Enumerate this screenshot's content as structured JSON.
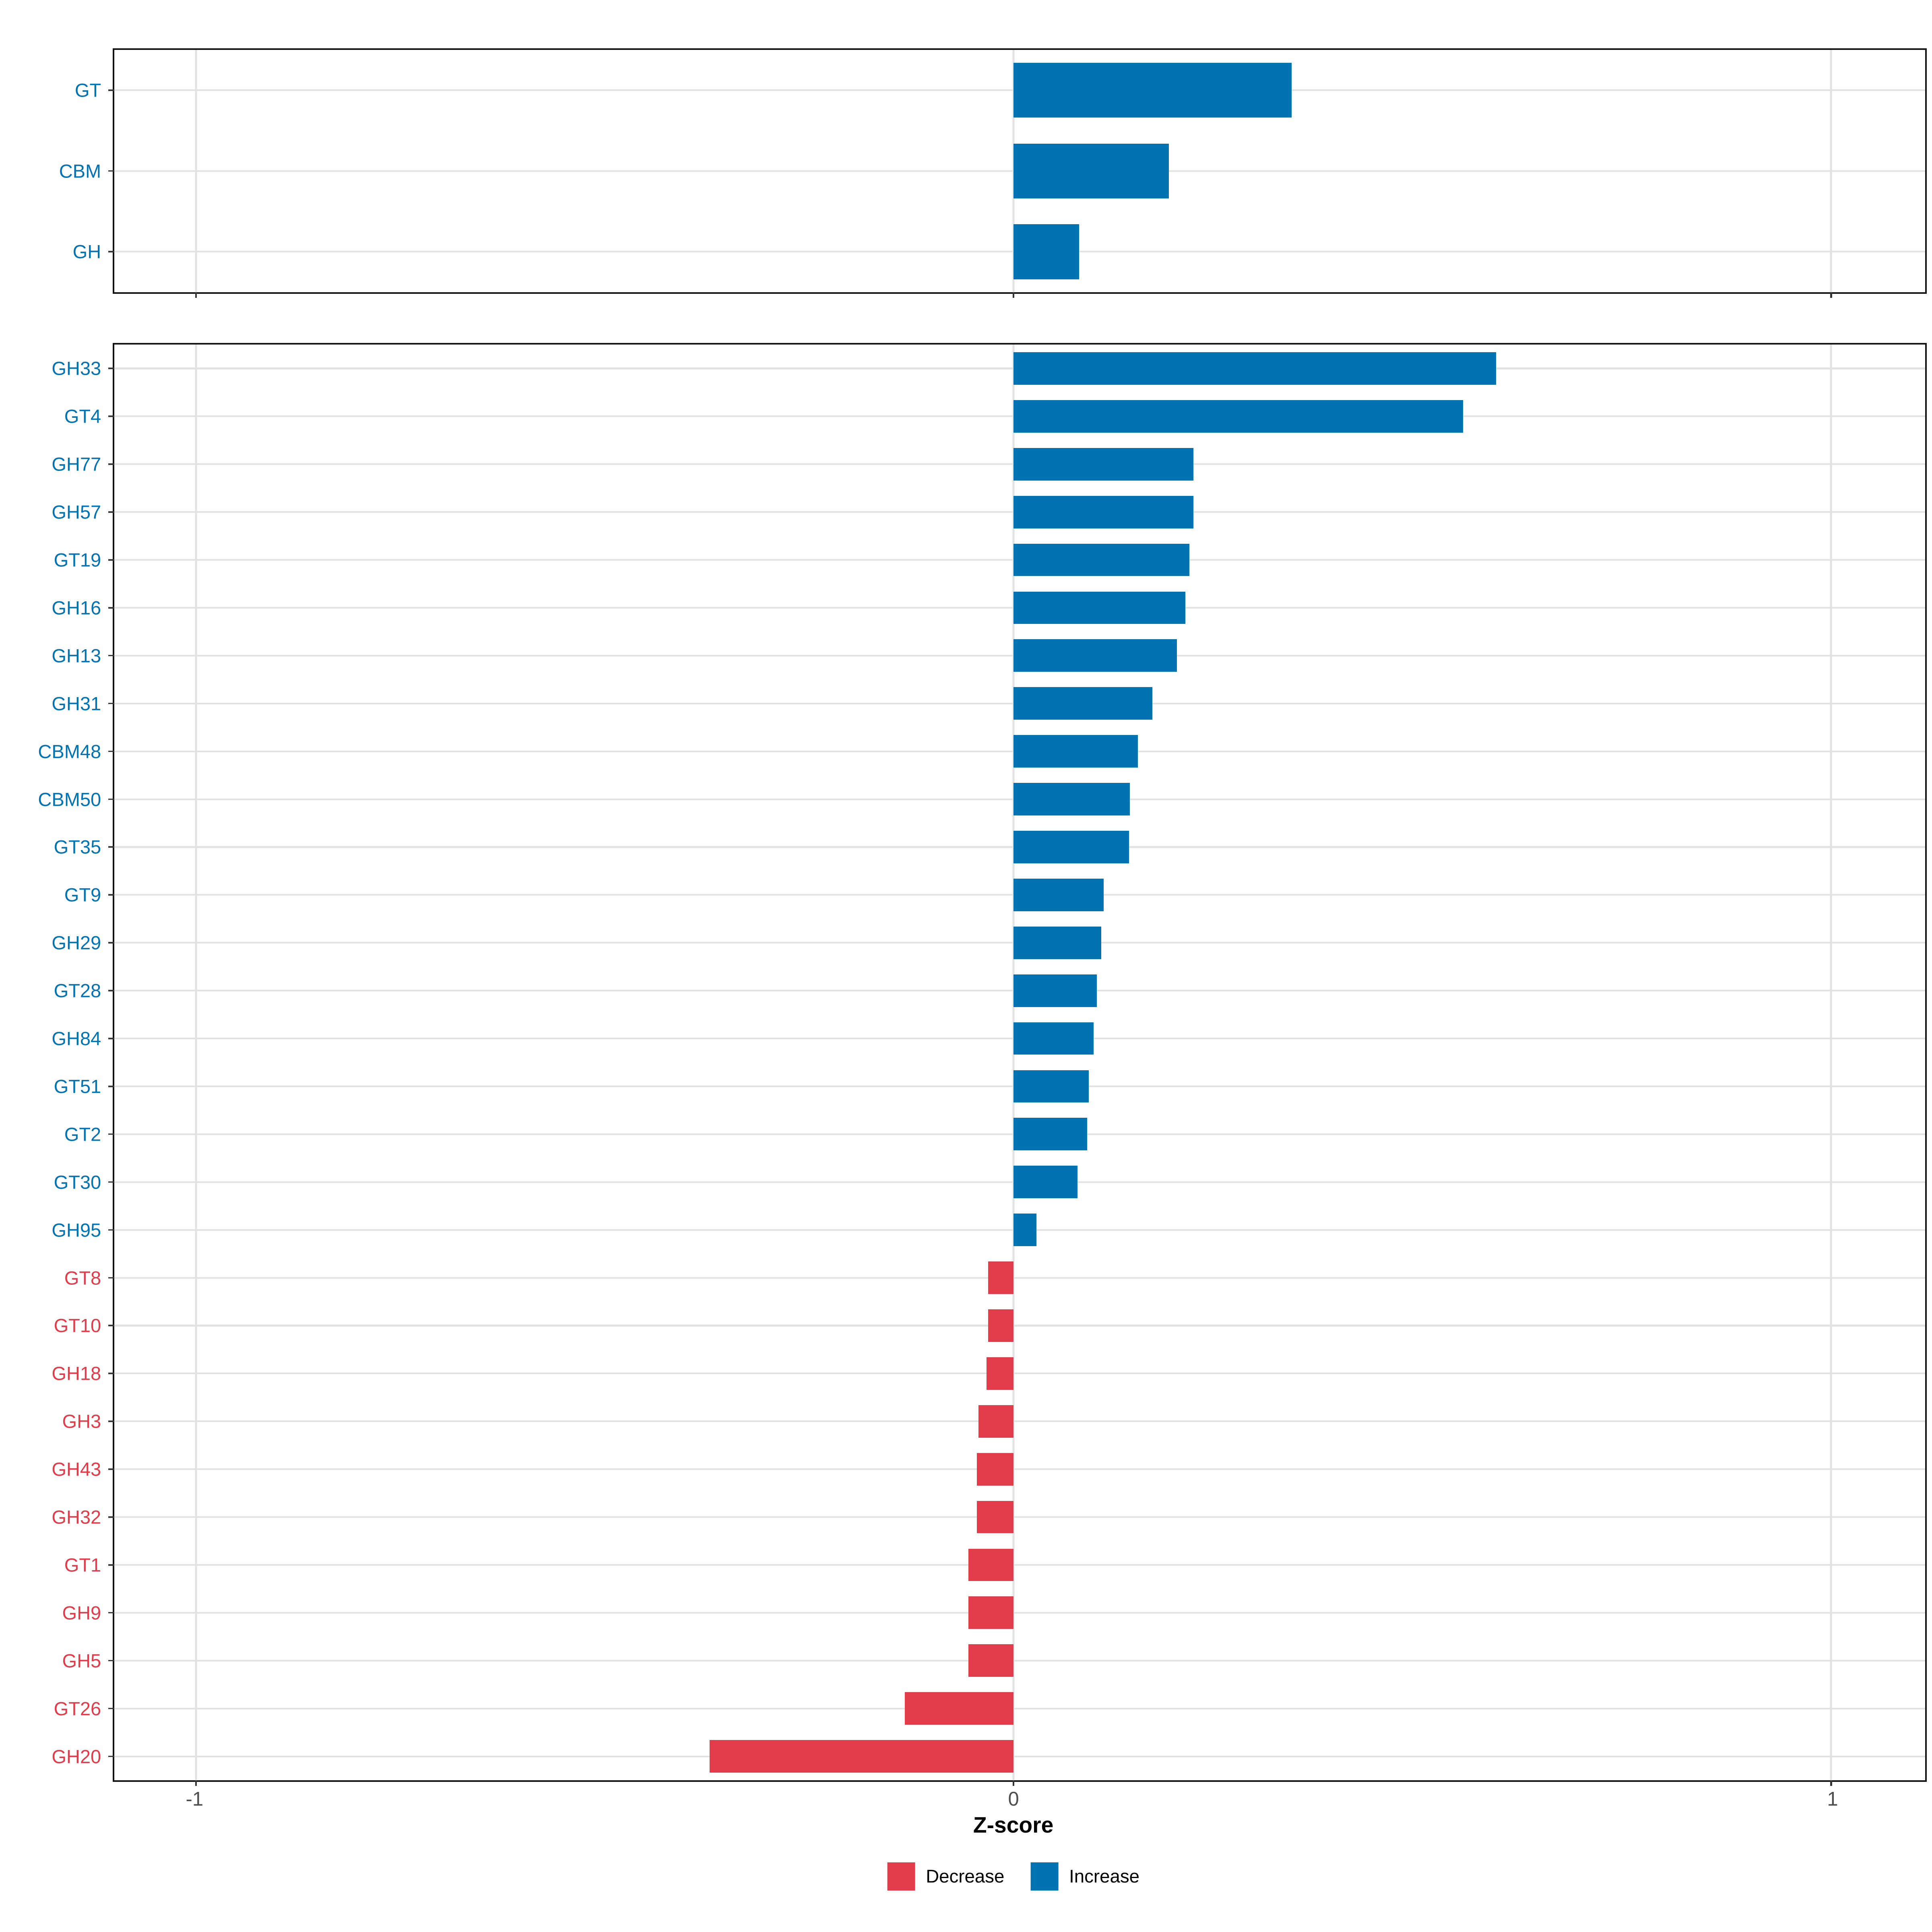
{
  "chart_data": {
    "type": "bar",
    "orientation": "horizontal",
    "xlabel": "Z-score",
    "xlim": [
      -1.1,
      1.115
    ],
    "x_ticks": [
      {
        "value": -1,
        "label": "-1"
      },
      {
        "value": 0,
        "label": "0"
      },
      {
        "value": 1,
        "label": "1"
      }
    ],
    "grid": "major vertical gridlines at -1,0,1 and light row gridlines",
    "legend_position": "bottom-center",
    "colors": {
      "increase": "#0173b2",
      "decrease": "#e23b49"
    },
    "legend": [
      {
        "key": "decrease",
        "label": "Decrease"
      },
      {
        "key": "increase",
        "label": "Increase"
      }
    ],
    "panels": [
      {
        "name": "cazyme-classes",
        "categories": [
          "GT",
          "CBM",
          "GH"
        ],
        "values": [
          0.34,
          0.19,
          0.08
        ]
      },
      {
        "name": "cazyme-families",
        "categories": [
          "GH33",
          "GT4",
          "GH77",
          "GH57",
          "GT19",
          "GH16",
          "GH13",
          "GH31",
          "CBM48",
          "CBM50",
          "GT35",
          "GT9",
          "GH29",
          "GT28",
          "GH84",
          "GT51",
          "GT2",
          "GT30",
          "GH95",
          "GT8",
          "GT10",
          "GH18",
          "GH3",
          "GH43",
          "GH32",
          "GT1",
          "GH9",
          "GH5",
          "GT26",
          "GH20"
        ],
        "values": [
          0.59,
          0.55,
          0.22,
          0.22,
          0.215,
          0.21,
          0.2,
          0.17,
          0.152,
          0.142,
          0.141,
          0.11,
          0.107,
          0.102,
          0.098,
          0.092,
          0.09,
          0.078,
          0.028,
          -0.031,
          -0.031,
          -0.033,
          -0.043,
          -0.045,
          -0.045,
          -0.055,
          -0.055,
          -0.055,
          -0.133,
          -0.372
        ]
      }
    ]
  }
}
